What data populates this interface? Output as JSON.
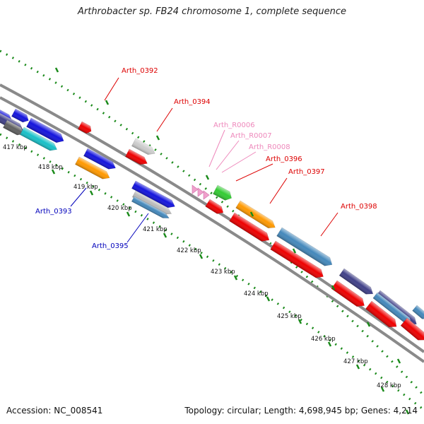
{
  "title": "Arthrobacter sp. FB24 chromosome 1, complete sequence",
  "footer": {
    "accession": "Accession: NC_008541",
    "stats": "Topology: circular; Length: 4,698,945 bp; Genes: 4,214"
  },
  "colors": {
    "backbone": "#888888",
    "ticks": "#1a8a1a",
    "label_red": "#dd0000",
    "label_blue": "#0000bb",
    "label_pink": "#ee88bb"
  },
  "kbp_labels": [
    "417 kbp",
    "418 kbp",
    "419 kbp",
    "420 kbp",
    "421 kbp",
    "422 kbp",
    "423 kbp",
    "424 kbp",
    "425 kbp",
    "426 kbp",
    "427 kbp",
    "428 kbp"
  ],
  "gene_labels": [
    {
      "text": "Arth_0392",
      "color": "red"
    },
    {
      "text": "Arth_0394",
      "color": "red"
    },
    {
      "text": "Arth_R0006",
      "color": "pink"
    },
    {
      "text": "Arth_R0007",
      "color": "pink"
    },
    {
      "text": "Arth_R0008",
      "color": "pink"
    },
    {
      "text": "Arth_0396",
      "color": "red"
    },
    {
      "text": "Arth_0397",
      "color": "red"
    },
    {
      "text": "Arth_0398",
      "color": "red"
    },
    {
      "text": "Arth_0393",
      "color": "blue"
    },
    {
      "text": "Arth_0395",
      "color": "blue"
    }
  ]
}
